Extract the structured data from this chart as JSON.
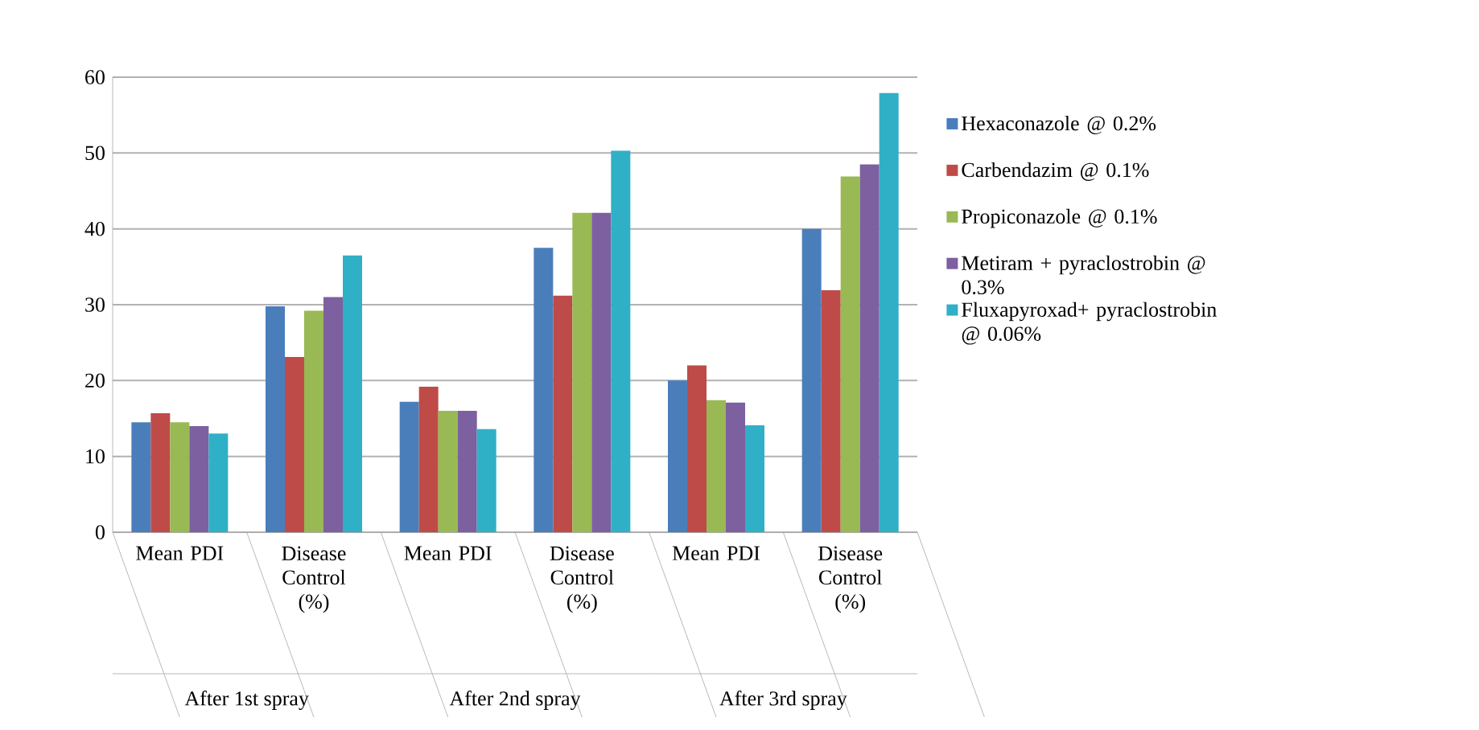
{
  "chart_data": {
    "type": "bar",
    "categories": [
      "Mean PDI",
      "Disease Control (%)",
      "Mean PDI",
      "Disease Control (%)",
      "Mean PDI",
      "Disease Control (%)"
    ],
    "series": [
      {
        "name": "Hexaconazole @ 0.2%",
        "color": "#4a7ebb",
        "values": [
          14.5,
          29.8,
          17.2,
          37.5,
          20,
          40
        ]
      },
      {
        "name": "Carbendazim @ 0.1%",
        "color": "#be4b48",
        "values": [
          15.7,
          23.1,
          19.2,
          31.2,
          22,
          31.9
        ]
      },
      {
        "name": "Propiconazole @ 0.1%",
        "color": "#98b954",
        "values": [
          14.5,
          29.2,
          16,
          42.1,
          17.4,
          46.9
        ]
      },
      {
        "name": "Metiram + pyraclostrobin @ 0.3%",
        "color": "#7d60a0",
        "values": [
          14,
          31,
          16,
          42.1,
          17.1,
          48.5
        ]
      },
      {
        "name": "Fluxapyroxad+ pyraclostrobin @ 0.06%",
        "color": "#2fb0c6",
        "values": [
          13,
          36.5,
          13.6,
          50.3,
          14.1,
          57.9
        ]
      }
    ],
    "ylim": [
      0,
      60
    ],
    "yticks": [
      0,
      10,
      20,
      30,
      40,
      50,
      60
    ],
    "grid": "y",
    "legend": "right",
    "annotations": [
      "After 1st spray",
      "After 2nd spray",
      "After 3rd spray"
    ]
  }
}
